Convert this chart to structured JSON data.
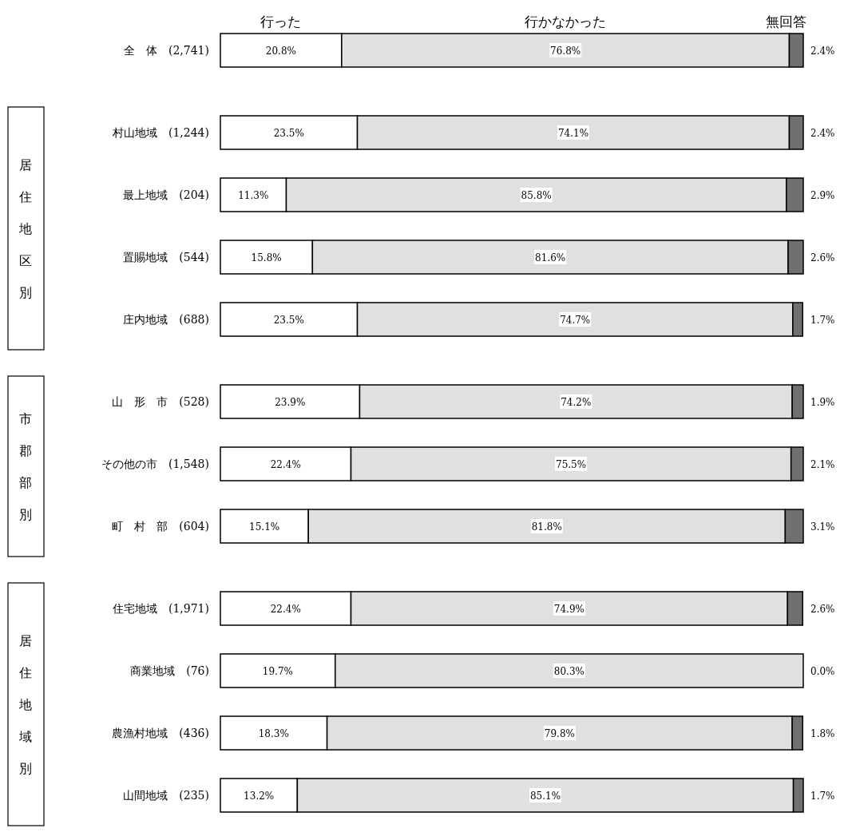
{
  "chart_data": [
    {
      "type": "bar",
      "orientation": "horizontal",
      "stacked": true,
      "legend": "top",
      "tick_labels": "y",
      "xlim": [
        0,
        100
      ],
      "categories": [
        "全　体　(2,741)"
      ],
      "series": [
        {
          "name": "行った",
          "color": "#ffffff",
          "values": [
            20.8
          ],
          "value_labels": [
            "20.8%"
          ]
        },
        {
          "name": "行かなかった",
          "color": "#e0e0e0",
          "values": [
            76.8
          ],
          "value_labels": [
            "76.8%"
          ]
        },
        {
          "name": "無回答",
          "color": "#707070",
          "values": [
            2.4
          ],
          "value_labels": [
            "2.4%"
          ]
        }
      ]
    },
    {
      "type": "bar",
      "orientation": "horizontal",
      "stacked": true,
      "title": "居住地区別",
      "tick_labels": "y",
      "xlim": [
        0,
        100
      ],
      "categories": [
        "村山地域　(1,244)",
        "最上地域　(204)",
        "置賜地域　(544)",
        "庄内地域　(688)"
      ],
      "series": [
        {
          "color": "#ffffff",
          "values": [
            23.5,
            11.3,
            15.8,
            23.5
          ],
          "value_labels": [
            "23.5%",
            "11.3%",
            "15.8%",
            "23.5%"
          ]
        },
        {
          "color": "#e0e0e0",
          "values": [
            74.1,
            85.8,
            81.6,
            74.7
          ],
          "value_labels": [
            "74.1%",
            "85.8%",
            "81.6%",
            "74.7%"
          ]
        },
        {
          "color": "#707070",
          "values": [
            2.4,
            2.9,
            2.6,
            1.7
          ],
          "value_labels": [
            "2.4%",
            "2.9%",
            "2.6%",
            "1.7%"
          ]
        }
      ]
    },
    {
      "type": "bar",
      "orientation": "horizontal",
      "stacked": true,
      "title": "市郡部別",
      "tick_labels": "y",
      "xlim": [
        0,
        100
      ],
      "categories": [
        "山　形　市　(528)",
        "その他の市　(1,548)",
        "町　村　部　(604)"
      ],
      "series": [
        {
          "color": "#ffffff",
          "values": [
            23.9,
            22.4,
            15.1
          ],
          "value_labels": [
            "23.9%",
            "22.4%",
            "15.1%"
          ]
        },
        {
          "color": "#e0e0e0",
          "values": [
            74.2,
            75.5,
            81.8
          ],
          "value_labels": [
            "74.2%",
            "75.5%",
            "81.8%"
          ]
        },
        {
          "color": "#707070",
          "values": [
            1.9,
            2.1,
            3.1
          ],
          "value_labels": [
            "1.9%",
            "2.1%",
            "3.1%"
          ]
        }
      ]
    },
    {
      "type": "bar",
      "orientation": "horizontal",
      "stacked": true,
      "title": "居住地域別",
      "tick_labels": "y",
      "xlim": [
        0,
        100
      ],
      "categories": [
        "住宅地域　(1,971)",
        "商業地域　(76)",
        "農漁村地域　(436)",
        "山間地域　(235)"
      ],
      "series": [
        {
          "color": "#ffffff",
          "values": [
            22.4,
            19.7,
            18.3,
            13.2
          ],
          "value_labels": [
            "22.4%",
            "19.7%",
            "18.3%",
            "13.2%"
          ]
        },
        {
          "color": "#e0e0e0",
          "values": [
            74.9,
            80.3,
            79.8,
            85.1
          ],
          "value_labels": [
            "74.9%",
            "80.3%",
            "79.8%",
            "85.1%"
          ]
        },
        {
          "color": "#707070",
          "values": [
            2.6,
            0.0,
            1.8,
            1.7
          ],
          "value_labels": [
            "2.6%",
            "0.0%",
            "1.8%",
            "1.7%"
          ]
        }
      ]
    }
  ]
}
